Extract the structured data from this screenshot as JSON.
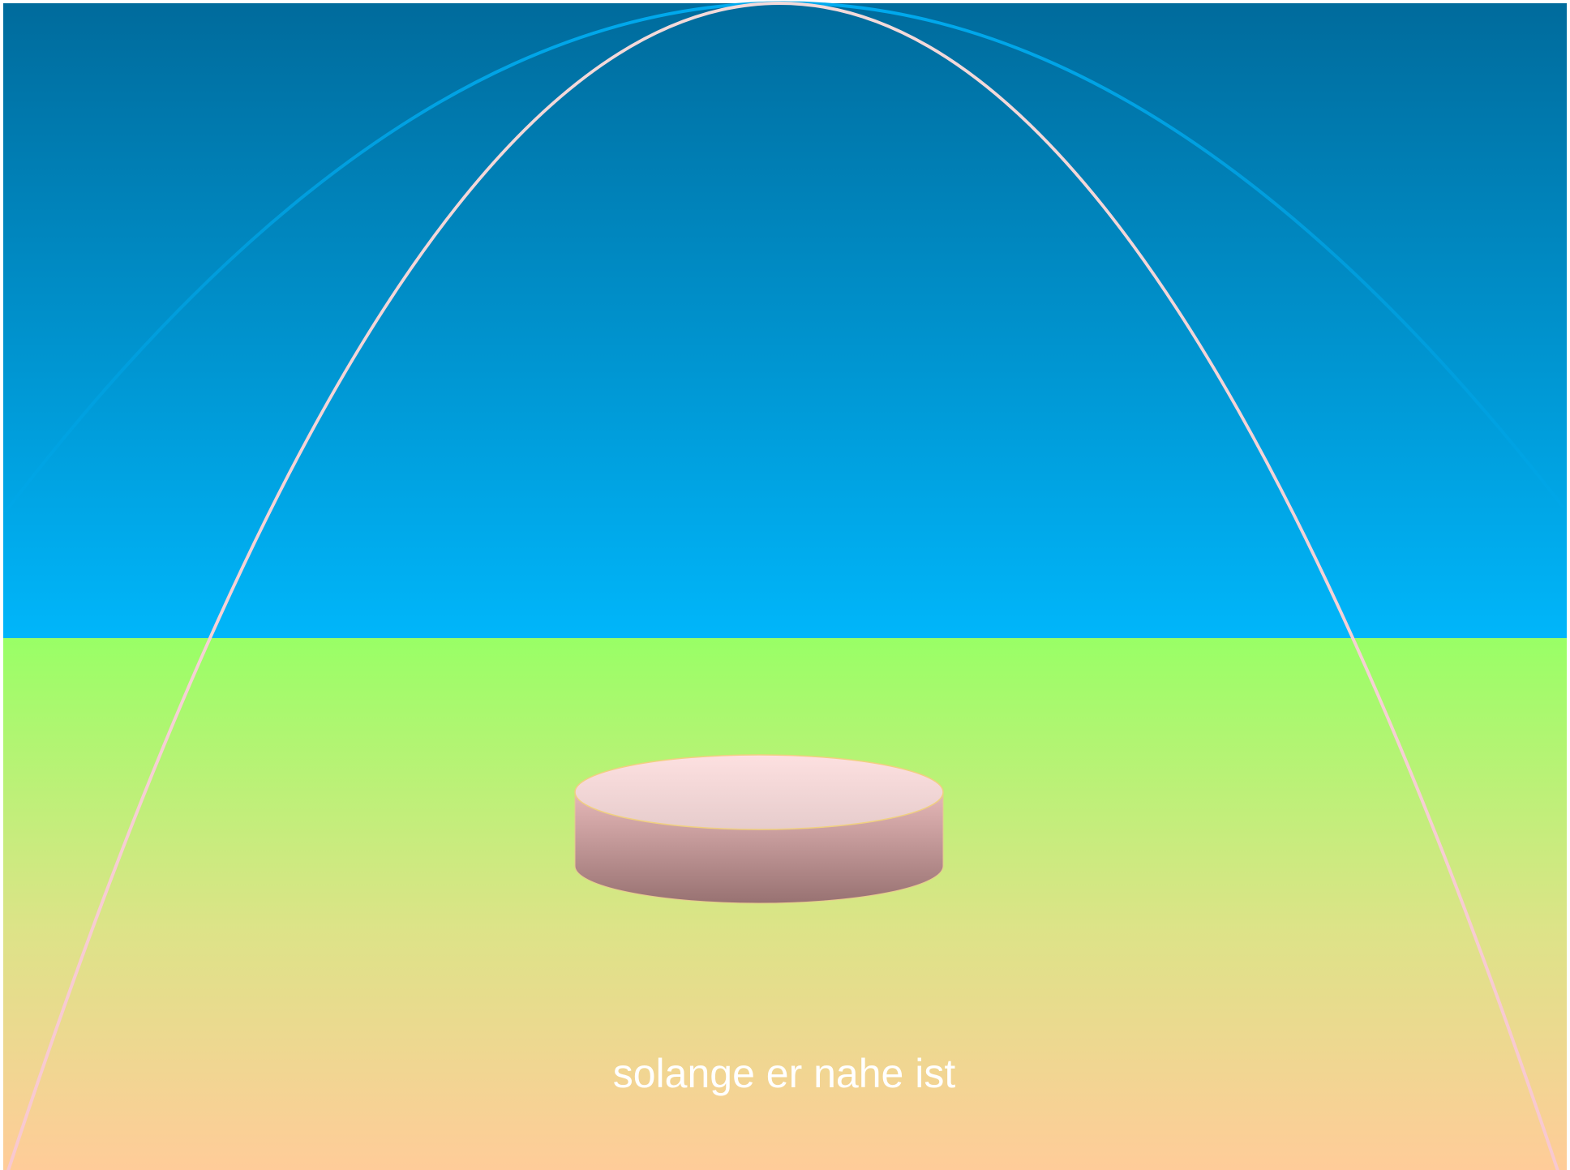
{
  "caption": "solange er nahe ist"
}
